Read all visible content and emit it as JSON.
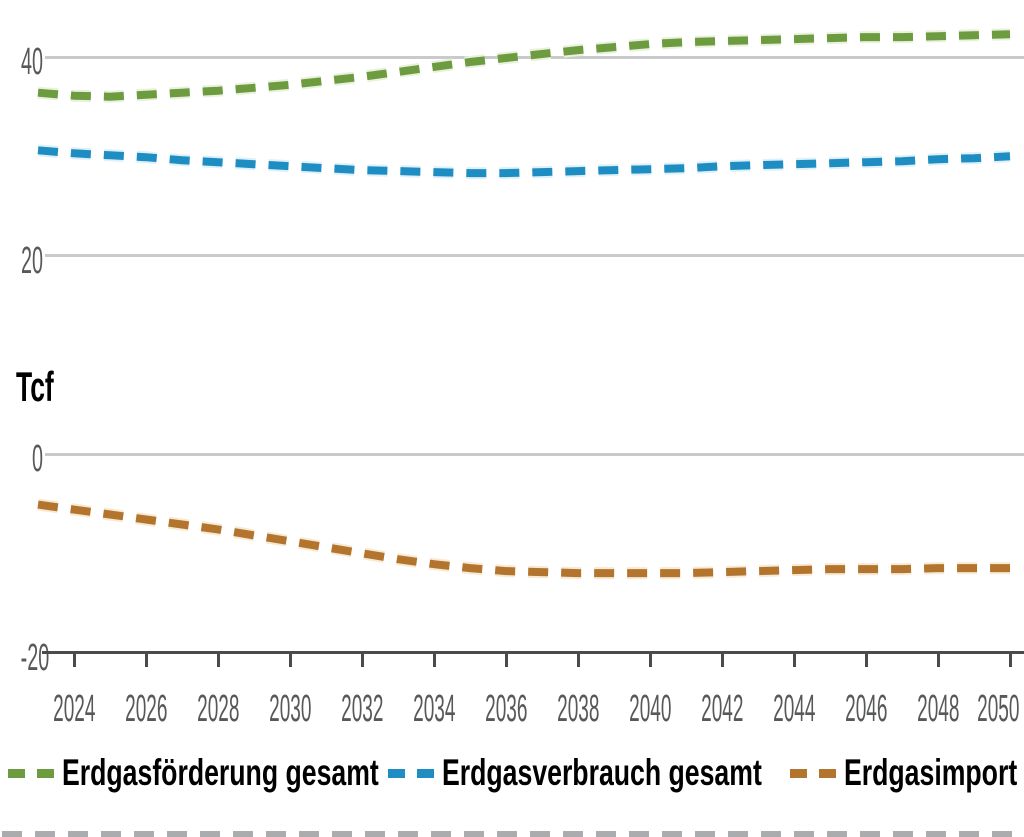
{
  "chart_data": {
    "type": "line",
    "title": "",
    "xlabel": "",
    "ylabel": "Tcf",
    "line_style": "dashed",
    "grid": true,
    "legend_position": "bottom",
    "x_range": [
      2023,
      2050
    ],
    "ylim_visible": [
      -20,
      45
    ],
    "x_tick_labels": [
      "2024",
      "2026",
      "2028",
      "2030",
      "2032",
      "2034",
      "2036",
      "2038",
      "2040",
      "2042",
      "2044",
      "2046",
      "2048",
      "2050"
    ],
    "y_tick_labels": [
      "40",
      "20",
      "0",
      "-20"
    ],
    "y_tick_values": [
      40,
      20,
      0,
      -20
    ],
    "x": [
      2023,
      2024,
      2025,
      2026,
      2027,
      2028,
      2029,
      2030,
      2031,
      2032,
      2033,
      2034,
      2035,
      2036,
      2037,
      2038,
      2039,
      2040,
      2041,
      2042,
      2043,
      2044,
      2045,
      2046,
      2047,
      2048,
      2049,
      2050
    ],
    "series": [
      {
        "name": "Erdgasförderung gesamt",
        "color": "#6d9b3f",
        "halo_color": "#e9f0dc",
        "values": [
          36.4,
          36.1,
          36.0,
          36.2,
          36.4,
          36.6,
          36.9,
          37.2,
          37.6,
          38.0,
          38.5,
          39.0,
          39.5,
          39.9,
          40.3,
          40.7,
          41.0,
          41.3,
          41.5,
          41.6,
          41.7,
          41.8,
          41.9,
          42.0,
          42.0,
          42.1,
          42.2,
          42.3
        ]
      },
      {
        "name": "Erdgasverbrauch gesamt",
        "color": "#1d8dc2",
        "halo_color": "#def0f9",
        "values": [
          30.6,
          30.3,
          30.1,
          29.9,
          29.6,
          29.4,
          29.2,
          29.0,
          28.8,
          28.6,
          28.5,
          28.4,
          28.3,
          28.3,
          28.4,
          28.5,
          28.6,
          28.7,
          28.8,
          29.0,
          29.1,
          29.2,
          29.3,
          29.4,
          29.5,
          29.7,
          29.8,
          30.0
        ]
      },
      {
        "name": "Erdgasimport",
        "color": "#b3742e",
        "halo_color": "#f6ead4",
        "values": [
          -5.1,
          -5.6,
          -6.1,
          -6.6,
          -7.1,
          -7.6,
          -8.2,
          -8.8,
          -9.4,
          -10.0,
          -10.6,
          -11.1,
          -11.5,
          -11.8,
          -11.9,
          -12.0,
          -12.0,
          -12.0,
          -12.0,
          -11.9,
          -11.8,
          -11.7,
          -11.6,
          -11.6,
          -11.6,
          -11.5,
          -11.5,
          -11.5
        ]
      }
    ]
  },
  "colors": {
    "grid_line": "#c9cacb",
    "axis_line": "#4a4b4d",
    "tick_label": "#57585a",
    "legend_text": "#000000",
    "partial_bottom_dashes": "#aaacae"
  }
}
